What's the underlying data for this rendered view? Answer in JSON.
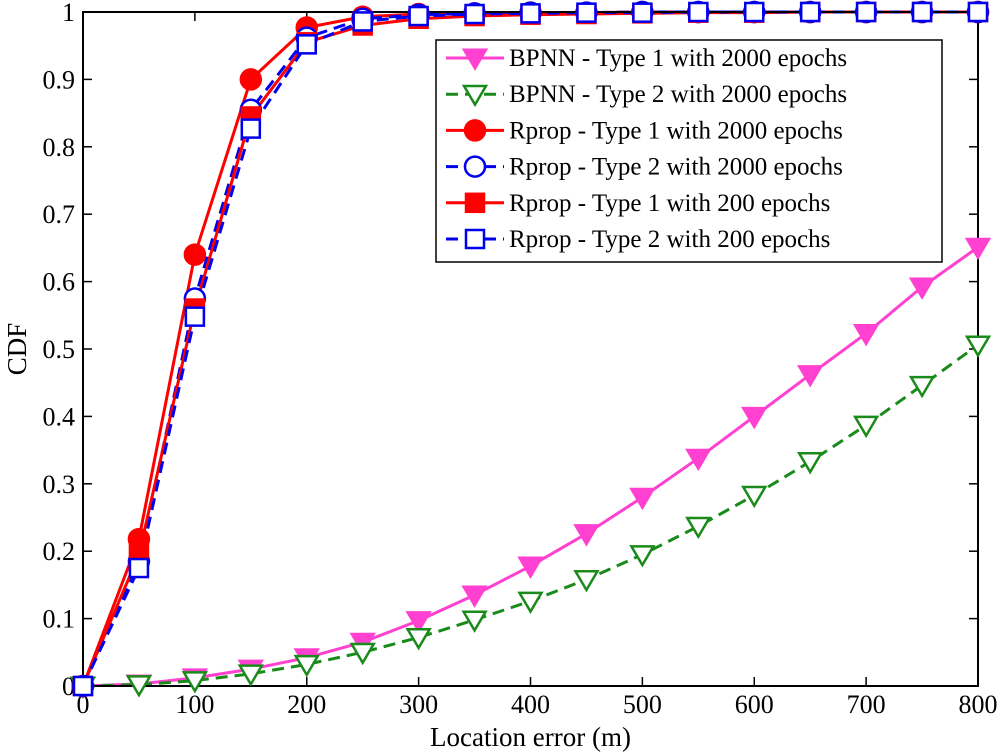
{
  "chart_data": {
    "type": "line",
    "xlabel": "Location error (m)",
    "ylabel": "CDF",
    "xlim": [
      0,
      800
    ],
    "ylim": [
      0,
      1
    ],
    "xticks": [
      0,
      100,
      200,
      300,
      400,
      500,
      600,
      700,
      800
    ],
    "yticks": [
      0,
      0.1,
      0.2,
      0.3,
      0.4,
      0.5,
      0.6,
      0.7,
      0.8,
      0.9,
      1
    ],
    "ytick_labels": [
      "0",
      "0.1",
      "0.2",
      "0.3",
      "0.4",
      "0.5",
      "0.6",
      "0.7",
      "0.8",
      "0.9",
      "1"
    ],
    "grid": false,
    "legend_position": "top-right",
    "series": [
      {
        "name": "BPNN - Type 1 with 2000 epochs",
        "color": "#ff40d0",
        "line_style": "solid",
        "marker": "triangle-down",
        "marker_fill": "filled",
        "x": [
          0,
          50,
          100,
          150,
          200,
          250,
          300,
          350,
          400,
          450,
          500,
          550,
          600,
          650,
          700,
          750,
          800
        ],
        "values": [
          0,
          0.003,
          0.012,
          0.025,
          0.042,
          0.065,
          0.097,
          0.135,
          0.178,
          0.226,
          0.28,
          0.338,
          0.4,
          0.462,
          0.523,
          0.592,
          0.651
        ]
      },
      {
        "name": "BPNN - Type 2 with 2000 epochs",
        "color": "#1a8a1a",
        "line_style": "dashed",
        "marker": "triangle-down",
        "marker_fill": "open",
        "x": [
          0,
          50,
          100,
          150,
          200,
          250,
          300,
          350,
          400,
          450,
          500,
          550,
          600,
          650,
          700,
          750,
          800
        ],
        "values": [
          0,
          0.002,
          0.008,
          0.018,
          0.032,
          0.05,
          0.072,
          0.098,
          0.126,
          0.158,
          0.195,
          0.237,
          0.283,
          0.333,
          0.387,
          0.446,
          0.506
        ]
      },
      {
        "name": "Rprop - Type 1 with 2000 epochs",
        "color": "#ff0000",
        "line_style": "solid",
        "marker": "circle",
        "marker_fill": "filled",
        "x": [
          0,
          50,
          100,
          150,
          200,
          250,
          300,
          350,
          400,
          450,
          500,
          550,
          600,
          650,
          700,
          750,
          800
        ],
        "values": [
          0,
          0.218,
          0.64,
          0.9,
          0.977,
          0.993,
          0.997,
          0.998,
          0.999,
          0.999,
          1,
          1,
          1,
          1,
          1,
          1,
          1
        ]
      },
      {
        "name": "Rprop - Type 2 with 2000 epochs",
        "color": "#0000ee",
        "line_style": "dashed",
        "marker": "circle",
        "marker_fill": "open",
        "x": [
          0,
          50,
          100,
          150,
          200,
          250,
          300,
          350,
          400,
          450,
          500,
          550,
          600,
          650,
          700,
          750,
          800
        ],
        "values": [
          0,
          0.185,
          0.575,
          0.855,
          0.962,
          0.99,
          0.996,
          0.998,
          0.999,
          0.999,
          1,
          1,
          1,
          1,
          1,
          1,
          1
        ]
      },
      {
        "name": "Rprop - Type 1 with 200 epochs",
        "color": "#ff0000",
        "line_style": "solid",
        "marker": "square",
        "marker_fill": "filled",
        "x": [
          0,
          50,
          100,
          150,
          200,
          250,
          300,
          350,
          400,
          450,
          500,
          550,
          600,
          650,
          700,
          750,
          800
        ],
        "values": [
          0,
          0.195,
          0.56,
          0.845,
          0.955,
          0.98,
          0.99,
          0.994,
          0.996,
          0.997,
          0.998,
          0.999,
          0.999,
          1,
          1,
          1,
          1
        ]
      },
      {
        "name": "Rprop - Type 2 with 200 epochs",
        "color": "#0000ee",
        "line_style": "dashed",
        "marker": "square",
        "marker_fill": "open",
        "x": [
          0,
          50,
          100,
          150,
          200,
          250,
          300,
          350,
          400,
          450,
          500,
          550,
          600,
          650,
          700,
          750,
          800
        ],
        "values": [
          0,
          0.175,
          0.548,
          0.827,
          0.952,
          0.986,
          0.994,
          0.997,
          0.998,
          0.999,
          0.999,
          1,
          1,
          1,
          1,
          1,
          1
        ]
      }
    ]
  }
}
